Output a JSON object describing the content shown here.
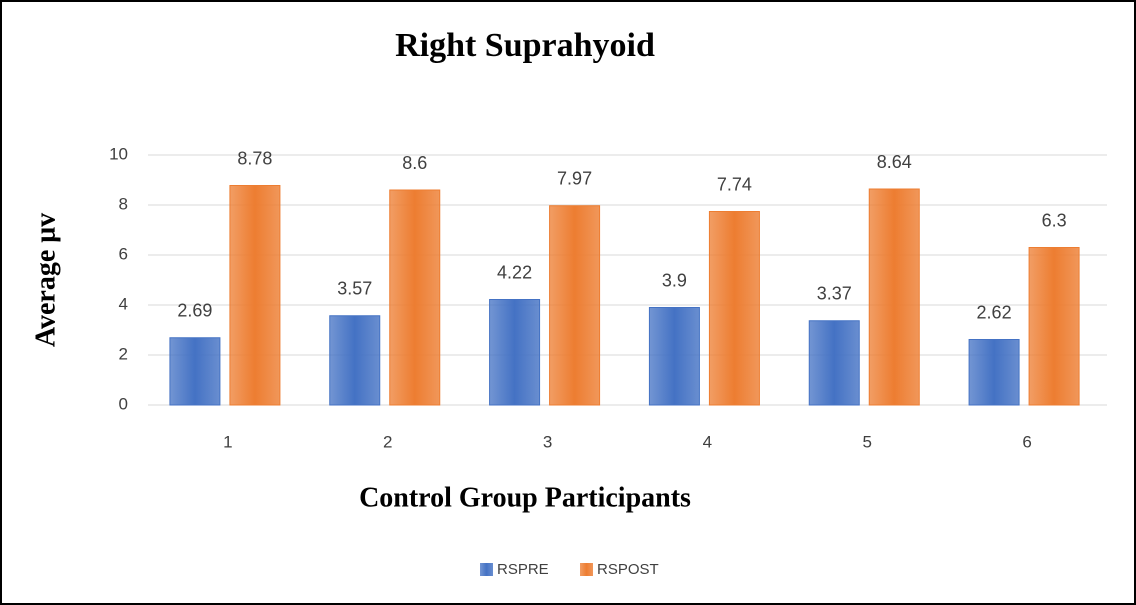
{
  "chart_data": {
    "type": "bar",
    "title": "Right Suprahyoid",
    "x_label": "Control Group Participants",
    "y_label": "Average μv",
    "categories": [
      "1",
      "2",
      "3",
      "4",
      "5",
      "6"
    ],
    "series": [
      {
        "name": "RSPRE",
        "color": "#4472c4",
        "values": [
          2.69,
          3.57,
          4.22,
          3.9,
          3.37,
          2.62
        ]
      },
      {
        "name": "RSPOST",
        "color": "#ed7d31",
        "values": [
          8.78,
          8.6,
          7.97,
          7.74,
          8.64,
          6.3
        ]
      }
    ],
    "ylim": [
      0,
      10
    ],
    "yticks": [
      0,
      2,
      4,
      6,
      8,
      10
    ],
    "grid": true,
    "legend": "bottom"
  }
}
